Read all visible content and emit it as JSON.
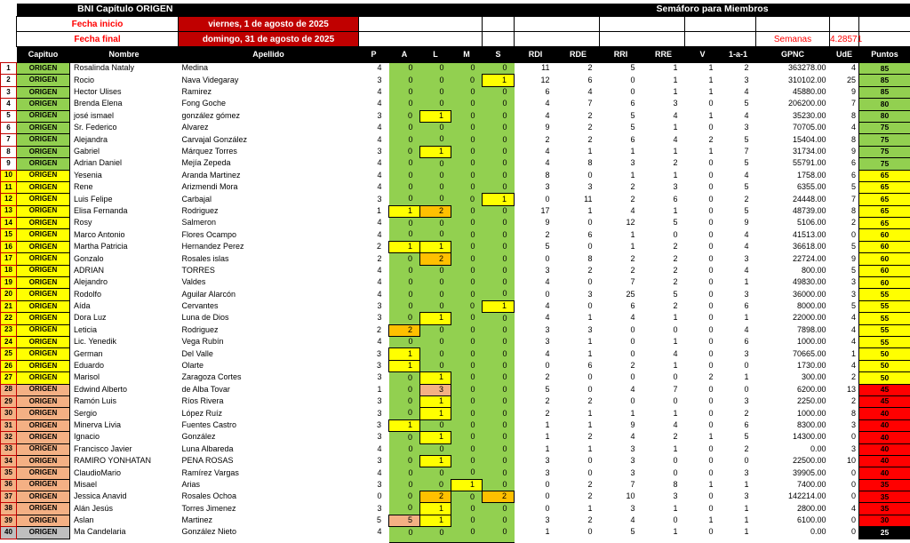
{
  "header": {
    "title_left": "BNI Capítulo ORIGEN",
    "title_right": "Semáforo para Miembros",
    "fecha_inicio_label": "Fecha inicio",
    "fecha_inicio_value": "viernes, 1 de agosto de 2025",
    "fecha_final_label": "Fecha final",
    "fecha_final_value": "domingo, 31 de agosto de 2025",
    "semanas_label": "Semanas",
    "semanas_value": "4.28571"
  },
  "columns": [
    "Capituo",
    "Nombre",
    "Apellido",
    "P",
    "A",
    "L",
    "M",
    "S",
    "RDI",
    "RDE",
    "RRI",
    "RRE",
    "V",
    "1-a-1",
    "GPNC",
    "UdE",
    "Puntos"
  ],
  "colors": {
    "green": "#92D050",
    "yellow": "#FFFF00",
    "orange": "#FFC000",
    "salmon": "#F4B084",
    "gray": "#BFBFBF",
    "red": "#FF0000",
    "dark_red": "#C00000",
    "black": "#000000"
  },
  "members": [
    {
      "n": 1,
      "tier": "green",
      "capitulo": "ORIGEN",
      "nombre": "Rosalinda Nataly",
      "apellido": "Medina",
      "p": 4,
      "a": 0,
      "l": 0,
      "m": 0,
      "s": 0,
      "rdi": 11,
      "rde": 2,
      "rri": 5,
      "rre": 1,
      "v": 1,
      "1a1": 2,
      "gpnc": "363278.00",
      "ude": 4,
      "puntos": 85,
      "hl": {}
    },
    {
      "n": 2,
      "tier": "green",
      "capitulo": "ORIGEN",
      "nombre": "Rocio",
      "apellido": "Nava Videgaray",
      "p": 3,
      "a": 0,
      "l": 0,
      "m": 0,
      "s": 1,
      "rdi": 12,
      "rde": 6,
      "rri": 0,
      "rre": 1,
      "v": 1,
      "1a1": 3,
      "gpnc": "310102.00",
      "ude": 25,
      "puntos": 85,
      "hl": {
        "s": "yellow"
      }
    },
    {
      "n": 3,
      "tier": "green",
      "capitulo": "ORIGEN",
      "nombre": "Hector Ulises",
      "apellido": "Ramirez",
      "p": 4,
      "a": 0,
      "l": 0,
      "m": 0,
      "s": 0,
      "rdi": 6,
      "rde": 4,
      "rri": 0,
      "rre": 1,
      "v": 1,
      "1a1": 4,
      "gpnc": "45880.00",
      "ude": 9,
      "puntos": 85,
      "hl": {}
    },
    {
      "n": 4,
      "tier": "green",
      "capitulo": "ORIGEN",
      "nombre": "Brenda Elena",
      "apellido": "Fong Goche",
      "p": 4,
      "a": 0,
      "l": 0,
      "m": 0,
      "s": 0,
      "rdi": 4,
      "rde": 7,
      "rri": 6,
      "rre": 3,
      "v": 0,
      "1a1": 5,
      "gpnc": "206200.00",
      "ude": 7,
      "puntos": 80,
      "hl": {}
    },
    {
      "n": 5,
      "tier": "green",
      "capitulo": "ORIGEN",
      "nombre": "josé ismael",
      "apellido": "gonzález gómez",
      "p": 3,
      "a": 0,
      "l": 1,
      "m": 0,
      "s": 0,
      "rdi": 4,
      "rde": 2,
      "rri": 5,
      "rre": 4,
      "v": 1,
      "1a1": 4,
      "gpnc": "35230.00",
      "ude": 8,
      "puntos": 80,
      "hl": {
        "l": "yellow"
      }
    },
    {
      "n": 6,
      "tier": "green",
      "capitulo": "ORIGEN",
      "nombre": "Sr. Federico",
      "apellido": "Alvarez",
      "p": 4,
      "a": 0,
      "l": 0,
      "m": 0,
      "s": 0,
      "rdi": 9,
      "rde": 2,
      "rri": 5,
      "rre": 1,
      "v": 0,
      "1a1": 3,
      "gpnc": "70705.00",
      "ude": 4,
      "puntos": 75,
      "hl": {}
    },
    {
      "n": 7,
      "tier": "green",
      "capitulo": "ORIGEN",
      "nombre": "Alejandra",
      "apellido": "Carvajal González",
      "p": 4,
      "a": 0,
      "l": 0,
      "m": 0,
      "s": 0,
      "rdi": 2,
      "rde": 2,
      "rri": 6,
      "rre": 4,
      "v": 2,
      "1a1": 5,
      "gpnc": "15404.00",
      "ude": 8,
      "puntos": 75,
      "hl": {}
    },
    {
      "n": 8,
      "tier": "green",
      "capitulo": "ORIGEN",
      "nombre": "Gabriel",
      "apellido": "Márquez Torres",
      "p": 3,
      "a": 0,
      "l": 1,
      "m": 0,
      "s": 0,
      "rdi": 4,
      "rde": 1,
      "rri": 1,
      "rre": 1,
      "v": 1,
      "1a1": 7,
      "gpnc": "31734.00",
      "ude": 9,
      "puntos": 75,
      "hl": {
        "l": "yellow"
      }
    },
    {
      "n": 9,
      "tier": "green",
      "capitulo": "ORIGEN",
      "nombre": "Adrian Daniel",
      "apellido": "Mejía Zepeda",
      "p": 4,
      "a": 0,
      "l": 0,
      "m": 0,
      "s": 0,
      "rdi": 4,
      "rde": 8,
      "rri": 3,
      "rre": 2,
      "v": 0,
      "1a1": 5,
      "gpnc": "55791.00",
      "ude": 6,
      "puntos": 75,
      "hl": {}
    },
    {
      "n": 10,
      "tier": "yellow",
      "capitulo": "ORIGEN",
      "nombre": "Yesenia",
      "apellido": "Aranda Martinez",
      "p": 4,
      "a": 0,
      "l": 0,
      "m": 0,
      "s": 0,
      "rdi": 8,
      "rde": 0,
      "rri": 1,
      "rre": 1,
      "v": 0,
      "1a1": 4,
      "gpnc": "1758.00",
      "ude": 6,
      "puntos": 65,
      "hl": {}
    },
    {
      "n": 11,
      "tier": "yellow",
      "capitulo": "ORIGEN",
      "nombre": "Rene",
      "apellido": "Arizmendi Mora",
      "p": 4,
      "a": 0,
      "l": 0,
      "m": 0,
      "s": 0,
      "rdi": 3,
      "rde": 3,
      "rri": 2,
      "rre": 3,
      "v": 0,
      "1a1": 5,
      "gpnc": "6355.00",
      "ude": 5,
      "puntos": 65,
      "hl": {}
    },
    {
      "n": 12,
      "tier": "yellow",
      "capitulo": "ORIGEN",
      "nombre": "Luis Felipe",
      "apellido": "Carbajal",
      "p": 3,
      "a": 0,
      "l": 0,
      "m": 0,
      "s": 1,
      "rdi": 0,
      "rde": 11,
      "rri": 2,
      "rre": 6,
      "v": 0,
      "1a1": 2,
      "gpnc": "24448.00",
      "ude": 7,
      "puntos": 65,
      "hl": {
        "s": "yellow"
      }
    },
    {
      "n": 13,
      "tier": "yellow",
      "capitulo": "ORIGEN",
      "nombre": "Elisa Fernanda",
      "apellido": "Rodriguez",
      "p": 1,
      "a": 1,
      "l": 2,
      "m": 0,
      "s": 0,
      "rdi": 17,
      "rde": 1,
      "rri": 4,
      "rre": 1,
      "v": 0,
      "1a1": 5,
      "gpnc": "48739.00",
      "ude": 8,
      "puntos": 65,
      "hl": {
        "a": "yellow",
        "l": "orange"
      }
    },
    {
      "n": 14,
      "tier": "yellow",
      "capitulo": "ORIGEN",
      "nombre": "Rosy",
      "apellido": "Salmeron",
      "p": 4,
      "a": 0,
      "l": 0,
      "m": 0,
      "s": 0,
      "rdi": 9,
      "rde": 0,
      "rri": 12,
      "rre": 5,
      "v": 0,
      "1a1": 9,
      "gpnc": "5106.00",
      "ude": 2,
      "puntos": 65,
      "hl": {}
    },
    {
      "n": 15,
      "tier": "yellow",
      "capitulo": "ORIGEN",
      "nombre": "Marco Antonio",
      "apellido": "Flores Ocampo",
      "p": 4,
      "a": 0,
      "l": 0,
      "m": 0,
      "s": 0,
      "rdi": 2,
      "rde": 6,
      "rri": 1,
      "rre": 0,
      "v": 0,
      "1a1": 4,
      "gpnc": "41513.00",
      "ude": 0,
      "puntos": 60,
      "hl": {}
    },
    {
      "n": 16,
      "tier": "yellow",
      "capitulo": "ORIGEN",
      "nombre": "Martha Patricia",
      "apellido": "Hernandez Perez",
      "p": 2,
      "a": 1,
      "l": 1,
      "m": 0,
      "s": 0,
      "rdi": 5,
      "rde": 0,
      "rri": 1,
      "rre": 2,
      "v": 0,
      "1a1": 4,
      "gpnc": "36618.00",
      "ude": 5,
      "puntos": 60,
      "hl": {
        "a": "yellow",
        "l": "yellow"
      }
    },
    {
      "n": 17,
      "tier": "yellow",
      "capitulo": "ORIGEN",
      "nombre": "Gonzalo",
      "apellido": "Rosales islas",
      "p": 2,
      "a": 0,
      "l": 2,
      "m": 0,
      "s": 0,
      "rdi": 0,
      "rde": 8,
      "rri": 2,
      "rre": 2,
      "v": 0,
      "1a1": 3,
      "gpnc": "22724.00",
      "ude": 9,
      "puntos": 60,
      "hl": {
        "l": "orange"
      }
    },
    {
      "n": 18,
      "tier": "yellow",
      "capitulo": "ORIGEN",
      "nombre": "ADRIAN",
      "apellido": "TORRES",
      "p": 4,
      "a": 0,
      "l": 0,
      "m": 0,
      "s": 0,
      "rdi": 3,
      "rde": 2,
      "rri": 2,
      "rre": 2,
      "v": 0,
      "1a1": 4,
      "gpnc": "800.00",
      "ude": 5,
      "puntos": 60,
      "hl": {}
    },
    {
      "n": 19,
      "tier": "yellow",
      "capitulo": "ORIGEN",
      "nombre": "Alejandro",
      "apellido": "Valdes",
      "p": 4,
      "a": 0,
      "l": 0,
      "m": 0,
      "s": 0,
      "rdi": 4,
      "rde": 0,
      "rri": 7,
      "rre": 2,
      "v": 0,
      "1a1": 1,
      "gpnc": "49830.00",
      "ude": 3,
      "puntos": 60,
      "hl": {}
    },
    {
      "n": 20,
      "tier": "yellow",
      "capitulo": "ORIGEN",
      "nombre": "Rodolfo",
      "apellido": "Aguilar Alarcón",
      "p": 4,
      "a": 0,
      "l": 0,
      "m": 0,
      "s": 0,
      "rdi": 0,
      "rde": 3,
      "rri": 25,
      "rre": 5,
      "v": 0,
      "1a1": 3,
      "gpnc": "36000.00",
      "ude": 3,
      "puntos": 55,
      "hl": {}
    },
    {
      "n": 21,
      "tier": "yellow",
      "capitulo": "ORIGEN",
      "nombre": "Aída",
      "apellido": "Cervantes",
      "p": 3,
      "a": 0,
      "l": 0,
      "m": 0,
      "s": 1,
      "rdi": 4,
      "rde": 0,
      "rri": 6,
      "rre": 2,
      "v": 0,
      "1a1": 6,
      "gpnc": "8000.00",
      "ude": 5,
      "puntos": 55,
      "hl": {
        "s": "yellow"
      }
    },
    {
      "n": 22,
      "tier": "yellow",
      "capitulo": "ORIGEN",
      "nombre": "Dora Luz",
      "apellido": "Luna de Dios",
      "p": 3,
      "a": 0,
      "l": 1,
      "m": 0,
      "s": 0,
      "rdi": 4,
      "rde": 1,
      "rri": 4,
      "rre": 1,
      "v": 0,
      "1a1": 1,
      "gpnc": "22000.00",
      "ude": 4,
      "puntos": 55,
      "hl": {
        "l": "yellow"
      }
    },
    {
      "n": 23,
      "tier": "yellow",
      "capitulo": "ORIGEN",
      "nombre": "Leticia",
      "apellido": "Rodriguez",
      "p": 2,
      "a": 2,
      "l": 0,
      "m": 0,
      "s": 0,
      "rdi": 3,
      "rde": 3,
      "rri": 0,
      "rre": 0,
      "v": 0,
      "1a1": 4,
      "gpnc": "7898.00",
      "ude": 4,
      "puntos": 55,
      "hl": {
        "a": "orange"
      }
    },
    {
      "n": 24,
      "tier": "yellow",
      "capitulo": "ORIGEN",
      "nombre": "Lic. Yenedik",
      "apellido": "Vega Rubín",
      "p": 4,
      "a": 0,
      "l": 0,
      "m": 0,
      "s": 0,
      "rdi": 3,
      "rde": 1,
      "rri": 0,
      "rre": 1,
      "v": 0,
      "1a1": 6,
      "gpnc": "1000.00",
      "ude": 4,
      "puntos": 55,
      "hl": {}
    },
    {
      "n": 25,
      "tier": "yellow",
      "capitulo": "ORIGEN",
      "nombre": "German",
      "apellido": "Del Valle",
      "p": 3,
      "a": 1,
      "l": 0,
      "m": 0,
      "s": 0,
      "rdi": 4,
      "rde": 1,
      "rri": 0,
      "rre": 4,
      "v": 0,
      "1a1": 3,
      "gpnc": "70665.00",
      "ude": 1,
      "puntos": 50,
      "hl": {
        "a": "yellow"
      }
    },
    {
      "n": 26,
      "tier": "yellow",
      "capitulo": "ORIGEN",
      "nombre": "Eduardo",
      "apellido": "Olarte",
      "p": 3,
      "a": 1,
      "l": 0,
      "m": 0,
      "s": 0,
      "rdi": 0,
      "rde": 6,
      "rri": 2,
      "rre": 1,
      "v": 0,
      "1a1": 0,
      "gpnc": "1730.00",
      "ude": 4,
      "puntos": 50,
      "hl": {
        "a": "yellow"
      }
    },
    {
      "n": 27,
      "tier": "yellow",
      "capitulo": "ORIGEN",
      "nombre": "Marisol",
      "apellido": "Zaragoza Cortes",
      "p": 3,
      "a": 0,
      "l": 1,
      "m": 0,
      "s": 0,
      "rdi": 2,
      "rde": 0,
      "rri": 0,
      "rre": 0,
      "v": 2,
      "1a1": 1,
      "gpnc": "300.00",
      "ude": 2,
      "puntos": 50,
      "hl": {
        "l": "yellow"
      }
    },
    {
      "n": 28,
      "tier": "salmon",
      "capitulo": "ORIGEN",
      "nombre": "Edwind Alberto",
      "apellido": "de Alba Tovar",
      "p": 1,
      "a": 0,
      "l": 3,
      "m": 0,
      "s": 0,
      "rdi": 5,
      "rde": 0,
      "rri": 4,
      "rre": 7,
      "v": 0,
      "1a1": 0,
      "gpnc": "6200.00",
      "ude": 13,
      "puntos": 45,
      "hl": {
        "l": "salmon"
      }
    },
    {
      "n": 29,
      "tier": "salmon",
      "capitulo": "ORIGEN",
      "nombre": "Ramón Luis",
      "apellido": "Ríos Rivera",
      "p": 3,
      "a": 0,
      "l": 1,
      "m": 0,
      "s": 0,
      "rdi": 2,
      "rde": 2,
      "rri": 0,
      "rre": 0,
      "v": 0,
      "1a1": 3,
      "gpnc": "2250.00",
      "ude": 2,
      "puntos": 45,
      "hl": {
        "l": "yellow"
      }
    },
    {
      "n": 30,
      "tier": "salmon",
      "capitulo": "ORIGEN",
      "nombre": "Sergio",
      "apellido": "López Ruíz",
      "p": 3,
      "a": 0,
      "l": 1,
      "m": 0,
      "s": 0,
      "rdi": 2,
      "rde": 1,
      "rri": 1,
      "rre": 1,
      "v": 0,
      "1a1": 2,
      "gpnc": "1000.00",
      "ude": 8,
      "puntos": 40,
      "hl": {
        "l": "yellow"
      }
    },
    {
      "n": 31,
      "tier": "salmon",
      "capitulo": "ORIGEN",
      "nombre": "Minerva Livia",
      "apellido": "Fuentes Castro",
      "p": 3,
      "a": 1,
      "l": 0,
      "m": 0,
      "s": 0,
      "rdi": 1,
      "rde": 1,
      "rri": 9,
      "rre": 4,
      "v": 0,
      "1a1": 6,
      "gpnc": "8300.00",
      "ude": 3,
      "puntos": 40,
      "hl": {
        "a": "yellow"
      }
    },
    {
      "n": 32,
      "tier": "salmon",
      "capitulo": "ORIGEN",
      "nombre": "Ignacio",
      "apellido": "González",
      "p": 3,
      "a": 0,
      "l": 1,
      "m": 0,
      "s": 0,
      "rdi": 1,
      "rde": 2,
      "rri": 4,
      "rre": 2,
      "v": 1,
      "1a1": 5,
      "gpnc": "14300.00",
      "ude": 0,
      "puntos": 40,
      "hl": {
        "l": "yellow"
      }
    },
    {
      "n": 33,
      "tier": "salmon",
      "capitulo": "ORIGEN",
      "nombre": "Francisco Javier",
      "apellido": "Luna Albareda",
      "p": 4,
      "a": 0,
      "l": 0,
      "m": 0,
      "s": 0,
      "rdi": 1,
      "rde": 1,
      "rri": 3,
      "rre": 1,
      "v": 0,
      "1a1": 2,
      "gpnc": "0.00",
      "ude": 3,
      "puntos": 40,
      "hl": {}
    },
    {
      "n": 34,
      "tier": "salmon",
      "capitulo": "ORIGEN",
      "nombre": "RAMIRO YONHATAN",
      "apellido": "PENA ROSAS",
      "p": 3,
      "a": 0,
      "l": 1,
      "m": 0,
      "s": 0,
      "rdi": 3,
      "rde": 0,
      "rri": 3,
      "rre": 0,
      "v": 0,
      "1a1": 0,
      "gpnc": "22500.00",
      "ude": 10,
      "puntos": 40,
      "hl": {
        "l": "yellow"
      }
    },
    {
      "n": 35,
      "tier": "salmon",
      "capitulo": "ORIGEN",
      "nombre": "ClaudioMario",
      "apellido": "Ramírez Vargas",
      "p": 4,
      "a": 0,
      "l": 0,
      "m": 0,
      "s": 0,
      "rdi": 3,
      "rde": 0,
      "rri": 3,
      "rre": 0,
      "v": 0,
      "1a1": 3,
      "gpnc": "39905.00",
      "ude": 0,
      "puntos": 40,
      "hl": {}
    },
    {
      "n": 36,
      "tier": "salmon",
      "capitulo": "ORIGEN",
      "nombre": "Misael",
      "apellido": "Arias",
      "p": 3,
      "a": 0,
      "l": 0,
      "m": 1,
      "s": 0,
      "rdi": 0,
      "rde": 2,
      "rri": 7,
      "rre": 8,
      "v": 1,
      "1a1": 1,
      "gpnc": "7400.00",
      "ude": 0,
      "puntos": 35,
      "hl": {
        "m": "yellow"
      }
    },
    {
      "n": 37,
      "tier": "salmon",
      "capitulo": "ORIGEN",
      "nombre": "Jessica Anavid",
      "apellido": "Rosales Ochoa",
      "p": 0,
      "a": 0,
      "l": 2,
      "m": 0,
      "s": 2,
      "rdi": 0,
      "rde": 2,
      "rri": 10,
      "rre": 3,
      "v": 0,
      "1a1": 3,
      "gpnc": "142214.00",
      "ude": 0,
      "puntos": 35,
      "hl": {
        "l": "orange",
        "s": "orange"
      }
    },
    {
      "n": 38,
      "tier": "salmon",
      "capitulo": "ORIGEN",
      "nombre": "Alán Jesús",
      "apellido": "Torres Jimenez",
      "p": 3,
      "a": 0,
      "l": 1,
      "m": 0,
      "s": 0,
      "rdi": 0,
      "rde": 1,
      "rri": 3,
      "rre": 1,
      "v": 0,
      "1a1": 1,
      "gpnc": "2800.00",
      "ude": 4,
      "puntos": 35,
      "hl": {
        "l": "yellow"
      }
    },
    {
      "n": 39,
      "tier": "salmon",
      "capitulo": "ORIGEN",
      "nombre": "Aslan",
      "apellido": "Martinez",
      "p": 5,
      "a": 5,
      "l": 1,
      "m": 0,
      "s": 0,
      "rdi": 3,
      "rde": 2,
      "rri": 4,
      "rre": 0,
      "v": 1,
      "1a1": 1,
      "gpnc": "6100.00",
      "ude": 0,
      "puntos": 30,
      "hl": {
        "a": "salmon",
        "l": "yellow"
      }
    },
    {
      "n": 40,
      "tier": "gray",
      "capitulo": "ORIGEN",
      "nombre": "Ma Candelaria",
      "apellido": "González Nieto",
      "p": 4,
      "a": 0,
      "l": 0,
      "m": 0,
      "s": 0,
      "rdi": 1,
      "rde": 0,
      "rri": 5,
      "rre": 1,
      "v": 0,
      "1a1": 1,
      "gpnc": "0.00",
      "ude": 0,
      "puntos": 25,
      "hl": {}
    }
  ]
}
